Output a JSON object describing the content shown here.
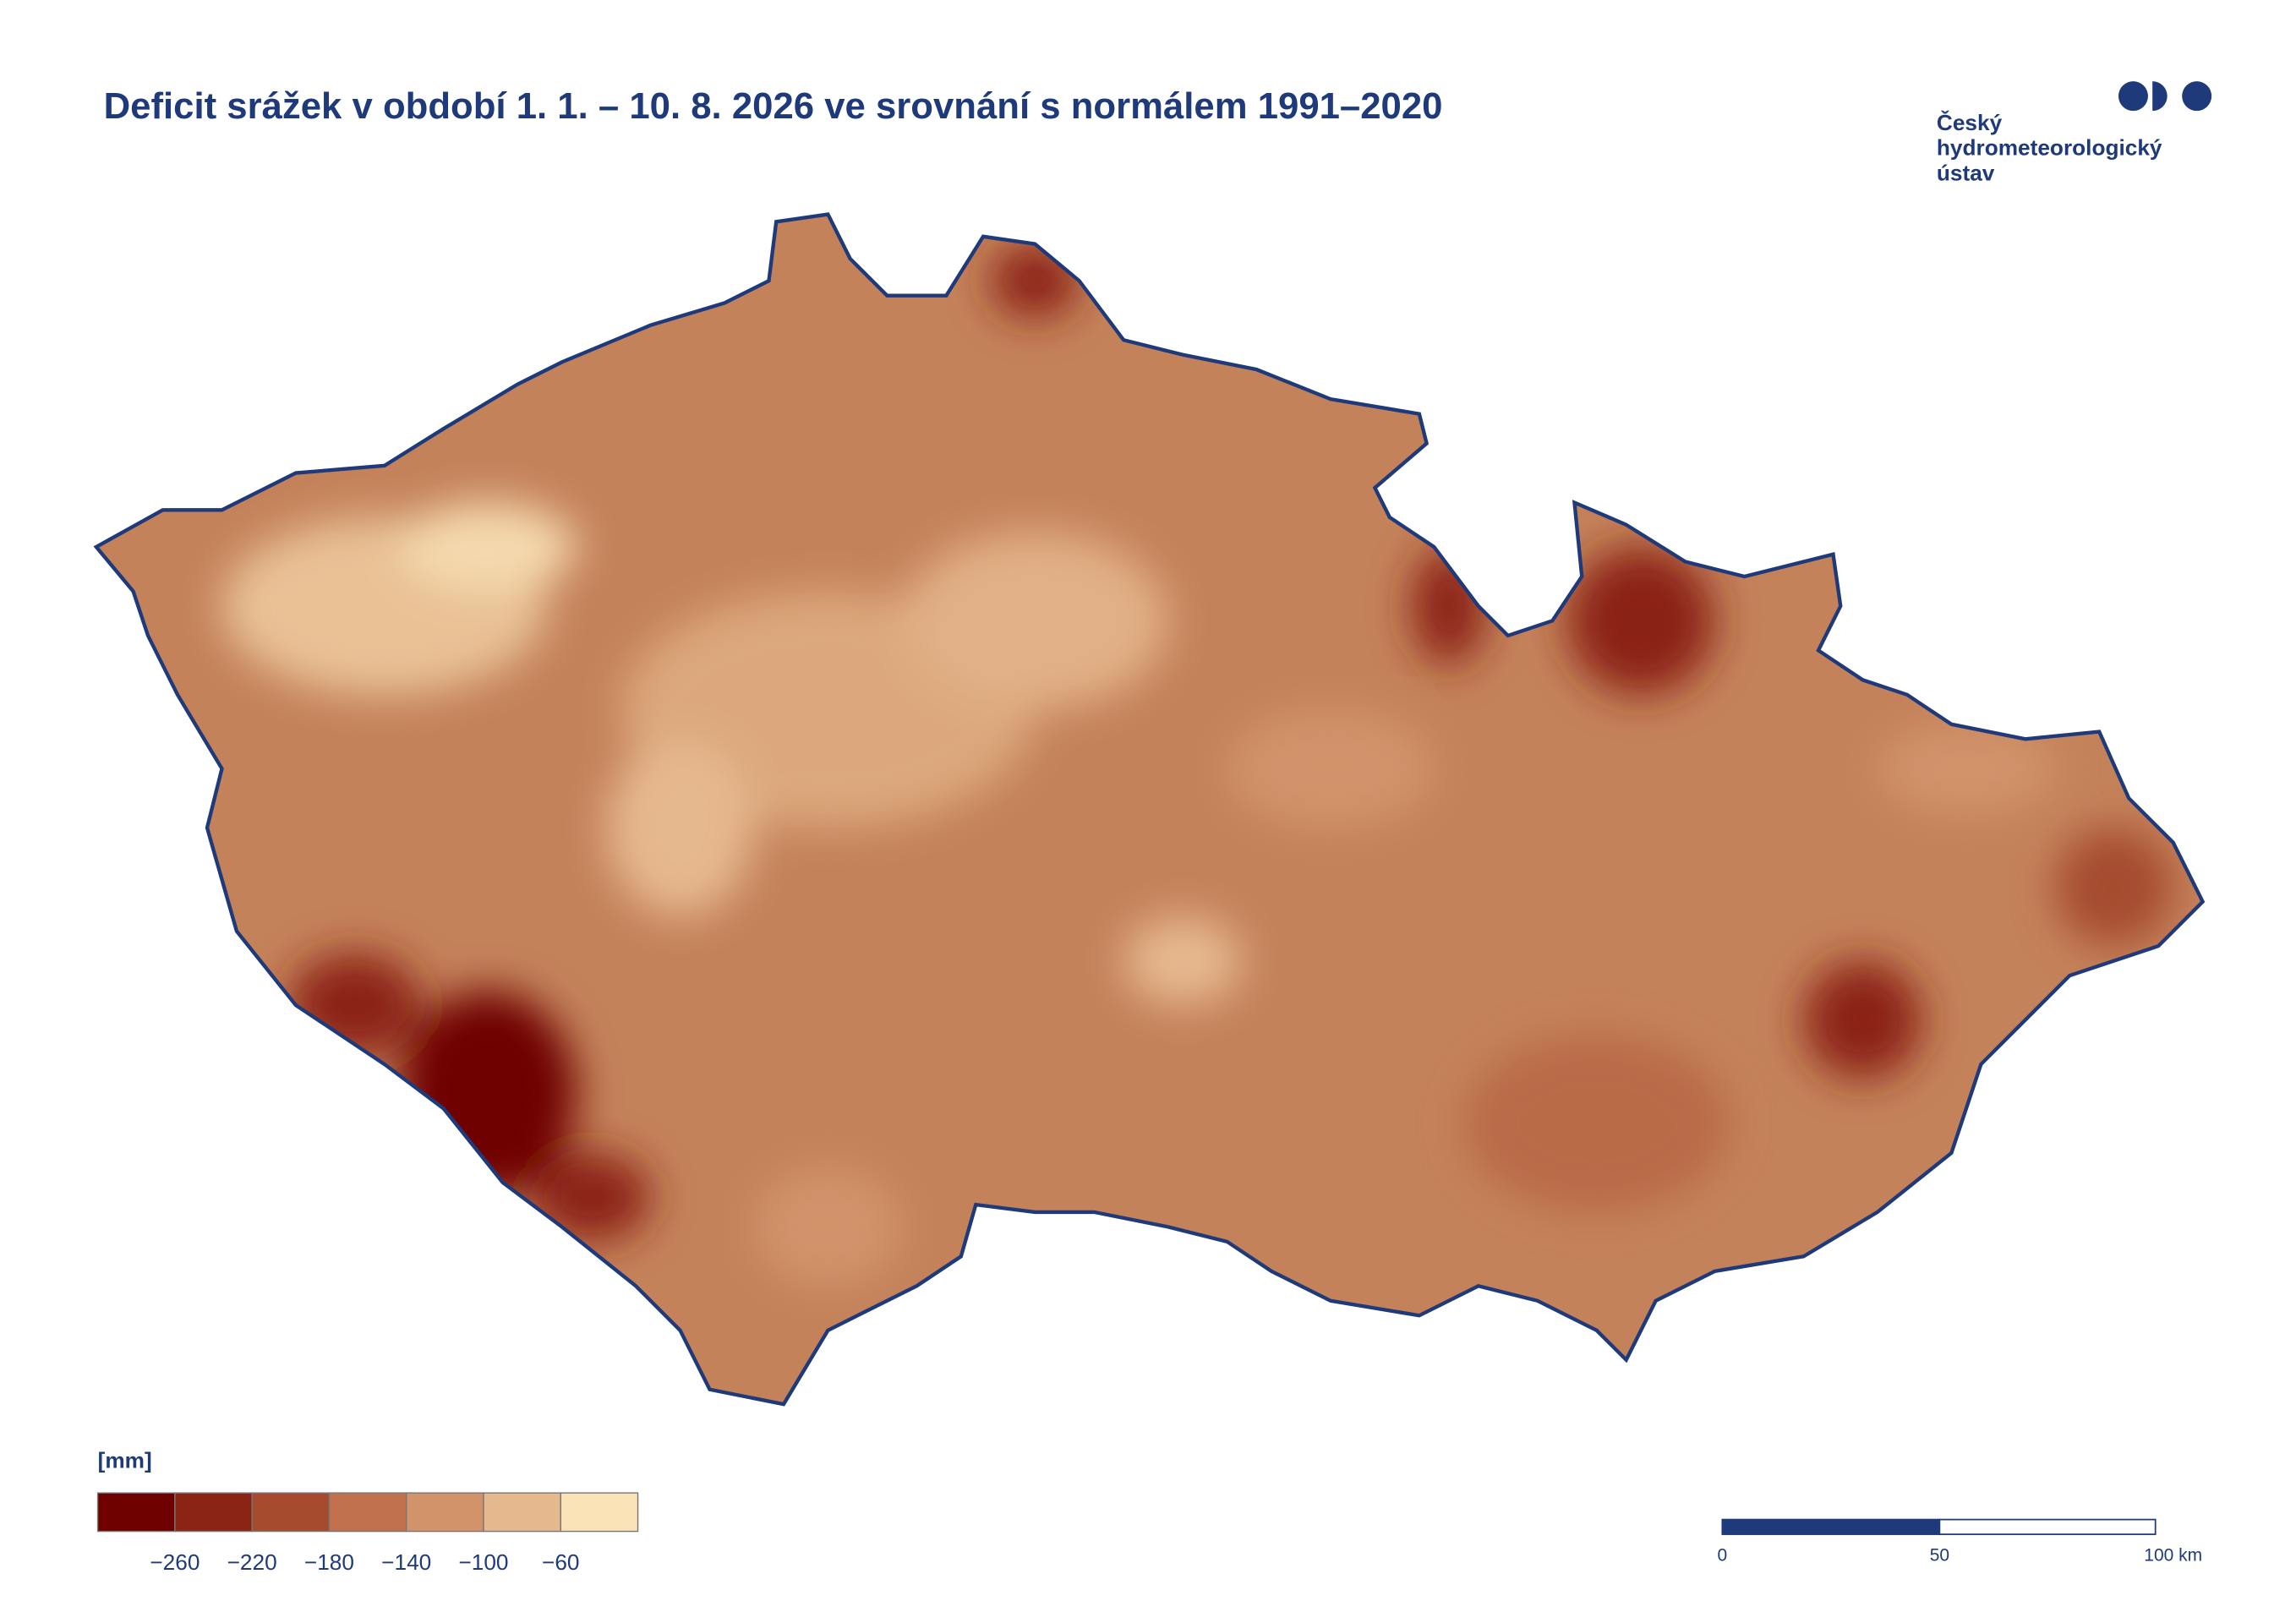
{
  "header": {
    "title": "Deficit srážek v období 1. 1. – 10. 8. 2026 ve srovnání s normálem 1991–2020"
  },
  "logo": {
    "lines": [
      "Český",
      "hydrometeorologický",
      "ústav"
    ]
  },
  "legend": {
    "unit": "[mm]",
    "colors": [
      "#6e0000",
      "#8b2415",
      "#a64b2e",
      "#c0704c",
      "#d2936a",
      "#e6b88e",
      "#fbe3b8"
    ],
    "ticks": [
      "−260",
      "−220",
      "−180",
      "−140",
      "−100",
      "−60"
    ]
  },
  "scale_bar": {
    "labels": [
      "0",
      "50",
      "100 km"
    ]
  }
}
